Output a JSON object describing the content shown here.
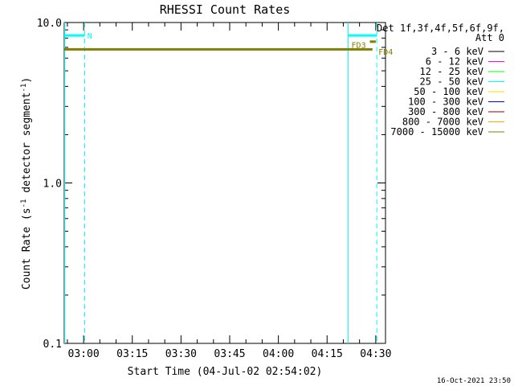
{
  "chart_data": {
    "type": "line",
    "title": "RHESSI Count Rates",
    "xlabel": "Start Time (04-Jul-02 02:54:02)",
    "ylabel_pre": "Count Rate (s",
    "ylabel_sup1": "-1",
    "ylabel_mid": " detector segment",
    "ylabel_sup2": "-1",
    "ylabel_post": ")",
    "y_scale": "log",
    "ylim": [
      0.1,
      10.0
    ],
    "xlim": [
      "02:54:02",
      "04:33:00"
    ],
    "yticks": [
      {
        "value": 0.1,
        "label": "0.1"
      },
      {
        "value": 1.0,
        "label": "1.0"
      },
      {
        "value": 10.0,
        "label": "10.0"
      }
    ],
    "xticks": [
      {
        "value": "03:00",
        "label": "03:00"
      },
      {
        "value": "03:15",
        "label": "03:15"
      },
      {
        "value": "03:30",
        "label": "03:30"
      },
      {
        "value": "03:45",
        "label": "03:45"
      },
      {
        "value": "04:00",
        "label": "04:00"
      },
      {
        "value": "04:15",
        "label": "04:15"
      },
      {
        "value": "04:30",
        "label": "04:30"
      }
    ],
    "legend": {
      "placement": "right",
      "header": [
        "Det 1f,3f,4f,5f,6f,9f,",
        "Att 0"
      ],
      "entries": [
        {
          "label": "3 - 6 keV",
          "color": "#000000"
        },
        {
          "label": "6 - 12 keV",
          "color": "#ff00ff"
        },
        {
          "label": "12 - 25 keV",
          "color": "#00ff00"
        },
        {
          "label": "25 - 50 keV",
          "color": "#00ffff"
        },
        {
          "label": "50 - 100 keV",
          "color": "#ffd700"
        },
        {
          "label": "100 - 300 keV",
          "color": "#0000ff"
        },
        {
          "label": "300 - 800 keV",
          "color": "#8b0000"
        },
        {
          "label": "800 - 7000 keV",
          "color": "#ffa500"
        },
        {
          "label": "7000 - 15000 keV",
          "color": "#808000"
        }
      ]
    },
    "series": [
      {
        "band": "7000 - 15000 keV",
        "color": "#808000",
        "points": [
          [
            "02:54:02",
            6.8
          ],
          [
            "04:29:00",
            6.8
          ]
        ]
      }
    ],
    "attenuator_segments": [
      {
        "color": "#808000",
        "points": [
          [
            "04:28:10",
            7.6
          ],
          [
            "04:30:00",
            7.6
          ]
        ]
      }
    ],
    "night_segments": [
      {
        "color": "#00ffff",
        "points": [
          [
            "02:54:02",
            8.3
          ],
          [
            "03:00:20",
            8.3
          ]
        ]
      },
      {
        "color": "#00ffff",
        "points": [
          [
            "04:21:30",
            8.3
          ],
          [
            "04:30:20",
            8.3
          ]
        ]
      }
    ],
    "markers": [
      {
        "time": "02:54:10",
        "style": "solid",
        "color": "#00ffff"
      },
      {
        "time": "03:00:20",
        "style": "dashed",
        "color": "#00ffff"
      },
      {
        "time": "04:21:30",
        "style": "solid",
        "color": "#00ffff"
      },
      {
        "time": "04:30:20",
        "style": "dashed",
        "color": "#00ffff"
      }
    ],
    "annotations": [
      {
        "text": "N",
        "time": "03:00:40",
        "value": 8.3,
        "color": "#00ffff"
      },
      {
        "text": "FD3",
        "time": "04:22:00",
        "value": 7.3,
        "color": "#808000"
      },
      {
        "text": "FD4",
        "time": "04:30:20",
        "value": 6.6,
        "color": "#808000"
      }
    ],
    "timestamp": "16-Oct-2021 23:50"
  }
}
